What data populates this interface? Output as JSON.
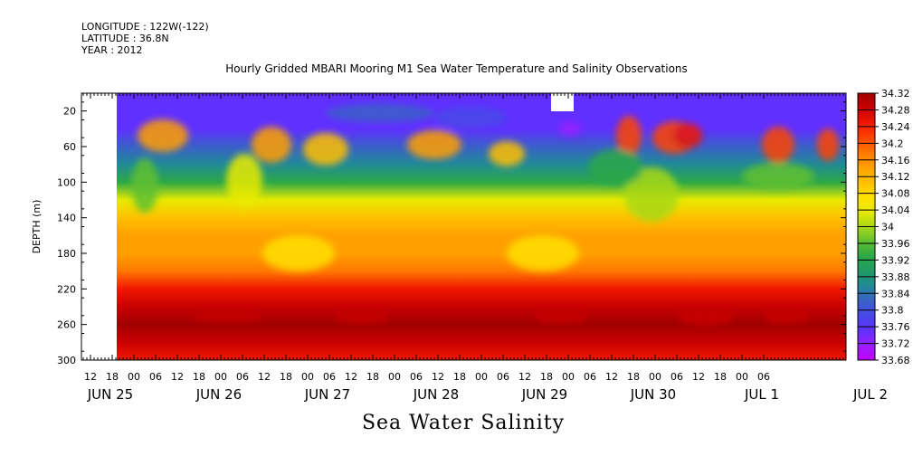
{
  "header": {
    "longitude": "LONGITUDE : 122W(-122)",
    "latitude": "LATITUDE : 36.8N",
    "year": "YEAR : 2012"
  },
  "chart_data": {
    "type": "heatmap",
    "title": "Hourly Gridded MBARI Mooring M1 Sea Water Temperature and Salinity Observations",
    "xlabel": "Sea Water Salinity",
    "ylabel": "DEPTH (m)",
    "ylim": [
      300,
      0
    ],
    "y_ticks": [
      20,
      60,
      100,
      140,
      180,
      220,
      260,
      300
    ],
    "x_hour_ticks": [
      "12",
      "18",
      "00",
      "06",
      "12",
      "18",
      "00",
      "06",
      "12",
      "18",
      "00",
      "06",
      "12",
      "18",
      "00",
      "06",
      "12",
      "18",
      "00",
      "06",
      "12",
      "18",
      "00",
      "06",
      "12",
      "18",
      "00",
      "06",
      "12",
      "18",
      "00",
      "06"
    ],
    "x_day_labels": [
      "JUN 25",
      "JUN 26",
      "JUN 27",
      "JUN 28",
      "JUN 29",
      "JUN 30",
      "JUL  1",
      "JUL  2"
    ],
    "colorbar_labels": [
      "34.32",
      "34.28",
      "34.24",
      "34.2",
      "34.16",
      "34.12",
      "34.08",
      "34.04",
      "34",
      "33.96",
      "33.92",
      "33.88",
      "33.84",
      "33.8",
      "33.76",
      "33.72",
      "33.68"
    ],
    "colorbar_range": [
      33.68,
      34.32
    ],
    "data_start": "JUN 25 18:00",
    "profile_depths": [
      10,
      40,
      60,
      80,
      100,
      120,
      140,
      160,
      180,
      200,
      220,
      240,
      260,
      280,
      300
    ],
    "profile_salinity": [
      33.76,
      33.78,
      33.82,
      33.87,
      33.93,
      34.02,
      34.1,
      34.15,
      34.12,
      34.16,
      34.22,
      34.27,
      34.29,
      34.26,
      34.22
    ],
    "colors": {
      "scale": [
        "#c000ff",
        "#9a20ff",
        "#6030ff",
        "#4848e8",
        "#3a60c8",
        "#208a96",
        "#1f9a64",
        "#2ca848",
        "#60c030",
        "#a8d818",
        "#e8ea00",
        "#ffe000",
        "#ffc000",
        "#ffa000",
        "#ff7800",
        "#ff4400",
        "#f01800",
        "#c80000",
        "#a00000"
      ]
    }
  }
}
